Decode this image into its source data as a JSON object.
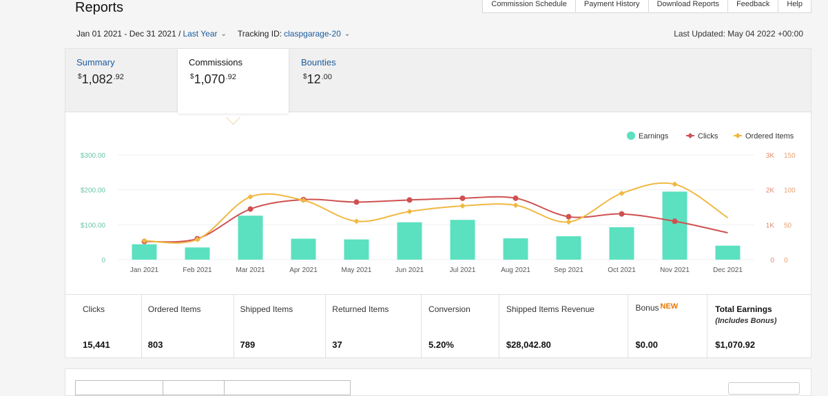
{
  "header": {
    "title": "Reports",
    "tabs": [
      "Commission Schedule",
      "Payment History",
      "Download Reports",
      "Feedback",
      "Help"
    ]
  },
  "filters": {
    "date_range": "Jan 01 2021 - Dec 31 2021 /",
    "period": "Last Year",
    "tracking_label": "Tracking ID:",
    "tracking_id": "claspgarage-20",
    "last_updated": "Last Updated: May 04 2022 +00:00"
  },
  "kpis": [
    {
      "label": "Summary",
      "currency": "$",
      "amount": "1,082",
      "cents": ".92"
    },
    {
      "label": "Commissions",
      "currency": "$",
      "amount": "1,070",
      "cents": ".92"
    },
    {
      "label": "Bounties",
      "currency": "$",
      "amount": "12",
      "cents": ".00"
    }
  ],
  "chart_data": {
    "type": "bar",
    "categories": [
      "Jan 2021",
      "Feb 2021",
      "Mar 2021",
      "Apr 2021",
      "May 2021",
      "Jun 2021",
      "Jul 2021",
      "Aug 2021",
      "Sep 2021",
      "Oct 2021",
      "Nov 2021",
      "Dec 2021"
    ],
    "series": [
      {
        "name": "Earnings",
        "type": "bar",
        "axis": "left",
        "values": [
          44,
          35,
          126,
          60,
          58,
          107,
          114,
          61,
          67,
          93,
          195,
          40
        ]
      },
      {
        "name": "Clicks",
        "type": "line",
        "axis": "right1",
        "values": [
          520,
          600,
          1450,
          1720,
          1650,
          1710,
          1760,
          1760,
          1230,
          1310,
          1100,
          770
        ]
      },
      {
        "name": "Ordered Items",
        "type": "line",
        "axis": "right2",
        "values": [
          27,
          29,
          90,
          85,
          55,
          69,
          77,
          78,
          54,
          95,
          108,
          60
        ]
      }
    ],
    "y_left": {
      "ticks": [
        "0",
        "$100.00",
        "$200.00",
        "$300.00"
      ],
      "max": 300
    },
    "y_right1": {
      "ticks": [
        "0",
        "1K",
        "2K",
        "3K"
      ],
      "max": 3000
    },
    "y_right2": {
      "ticks": [
        "0",
        "50",
        "100",
        "150"
      ],
      "max": 150
    },
    "colors": {
      "Earnings": "#5be0c0",
      "Clicks": "#d05050",
      "Ordered Items": "#f0b840"
    },
    "legend": "top-right"
  },
  "stats": [
    {
      "label": "Clicks",
      "value": "15,441"
    },
    {
      "label": "Ordered Items",
      "value": "803"
    },
    {
      "label": "Shipped Items",
      "value": "789"
    },
    {
      "label": "Returned Items",
      "value": "37"
    },
    {
      "label": "Conversion",
      "value": "5.20%"
    },
    {
      "label": "Shipped Items Revenue",
      "value": "$28,042.80"
    },
    {
      "label": "Bonus",
      "badge": "NEW",
      "value": "$0.00"
    },
    {
      "label": "Total Earnings",
      "sublabel": "(Includes Bonus)",
      "value": "$1,070.92"
    }
  ]
}
